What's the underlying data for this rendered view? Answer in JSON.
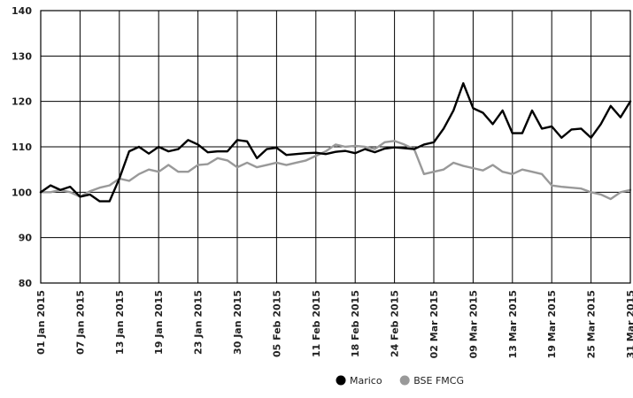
{
  "chart_data": {
    "type": "line",
    "title": "",
    "xlabel": "",
    "ylabel": "",
    "ylim": [
      80,
      140
    ],
    "y_ticks": [
      80,
      90,
      100,
      110,
      120,
      130,
      140
    ],
    "x_tick_labels": [
      "01 Jan 2015",
      "07 Jan 2015",
      "13 Jan 2015",
      "19 Jan 2015",
      "23 Jan 2015",
      "30 Jan 2015",
      "05 Feb 2015",
      "11 Feb 2015",
      "18 Feb 2015",
      "24 Feb 2015",
      "02 Mar 2015",
      "09 Mar 2015",
      "13 Mar 2015",
      "19 Mar 2015",
      "25 Mar 2015",
      "31 Mar 2015"
    ],
    "grid": true,
    "legend_position": "bottom-right",
    "series": [
      {
        "name": "Marico",
        "color": "#000000",
        "values": [
          100,
          101.5,
          100.5,
          101.2,
          99,
          99.5,
          98,
          98,
          103,
          109,
          110,
          108.5,
          110,
          109,
          109.5,
          111.5,
          110.5,
          108.8,
          109,
          109,
          111.5,
          111.2,
          107.5,
          109.5,
          109.8,
          108.2,
          108.4,
          108.6,
          108.7,
          108.4,
          108.9,
          109.1,
          108.6,
          109.5,
          108.8,
          109.6,
          109.9,
          109.7,
          109.5,
          110.5,
          111,
          114,
          118,
          124,
          118.5,
          117.5,
          115,
          118,
          113,
          113,
          118,
          114,
          114.5,
          112,
          113.8,
          114,
          112,
          115,
          119,
          116.5,
          120
        ]
      },
      {
        "name": "BSE FMCG",
        "color": "#999999",
        "values": [
          100,
          100,
          100.5,
          100,
          99,
          100.2,
          101,
          101.5,
          103,
          102.5,
          104,
          105,
          104.5,
          106,
          104.5,
          104.5,
          106,
          106.2,
          107.5,
          107,
          105.5,
          106.5,
          105.5,
          106,
          106.5,
          106,
          106.5,
          107,
          108,
          109,
          110.5,
          110,
          110.2,
          110,
          109.5,
          111,
          111.3,
          110.5,
          109.5,
          104,
          104.5,
          105,
          106.5,
          105.8,
          105.3,
          104.8,
          106,
          104.5,
          104,
          105,
          104.5,
          104,
          101.5,
          101.2,
          101,
          100.8,
          100,
          99.5,
          98.5,
          100,
          100.5
        ]
      }
    ]
  }
}
